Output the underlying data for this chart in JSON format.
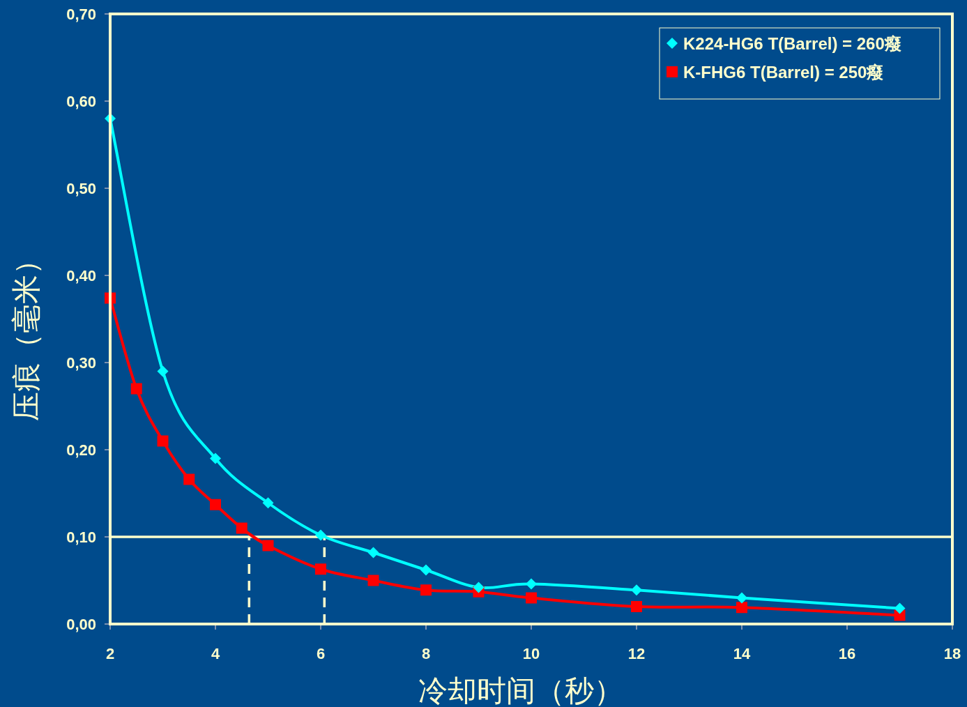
{
  "chart_data": {
    "type": "line",
    "xlabel": "冷却时间（秒）",
    "ylabel": "压痕（毫米）",
    "xlim": [
      2,
      18
    ],
    "xticks": [
      2,
      4,
      6,
      8,
      10,
      12,
      14,
      16,
      18
    ],
    "ylim": [
      0,
      0.7
    ],
    "yticks": [
      {
        "value": 0,
        "label": "0,00"
      },
      {
        "value": 0.1,
        "label": "0,10"
      },
      {
        "value": 0.2,
        "label": "0,20"
      },
      {
        "value": 0.3,
        "label": "0,30"
      },
      {
        "value": 0.4,
        "label": "0,40"
      },
      {
        "value": 0.5,
        "label": "0,50"
      },
      {
        "value": 0.6,
        "label": "0,60"
      },
      {
        "value": 0.7,
        "label": "0,70"
      }
    ],
    "grid": false,
    "legend": "top right",
    "series": [
      {
        "name": "K224-HG6 T(Barrel) = 260癈",
        "color": "#00ffff",
        "marker": "diamond",
        "x": [
          2,
          3,
          4,
          5,
          6,
          7,
          8,
          9,
          10,
          12,
          14,
          17
        ],
        "values": [
          0.58,
          0.29,
          0.19,
          0.139,
          0.102,
          0.082,
          0.062,
          0.042,
          0.046,
          0.039,
          0.03,
          0.018
        ]
      },
      {
        "name": "K-FHG6 T(Barrel) = 250癈",
        "color": "#ff0000",
        "marker": "square",
        "x": [
          2,
          2.5,
          3,
          3.5,
          4,
          4.5,
          5,
          6,
          7,
          8,
          9,
          10,
          12,
          14,
          17
        ],
        "values": [
          0.374,
          0.27,
          0.21,
          0.166,
          0.137,
          0.11,
          0.09,
          0.063,
          0.05,
          0.039,
          0.037,
          0.03,
          0.02,
          0.019,
          0.01
        ]
      }
    ],
    "ref_lines": [
      {
        "axis": "y",
        "value": 0.1,
        "color": "#ffffcc",
        "line_style": "solid"
      },
      {
        "axis": "x",
        "value": 4.64,
        "color": "#ffffcc",
        "line_style": "dashed"
      },
      {
        "axis": "x",
        "value": 6.07,
        "color": "#ffffcc",
        "line_style": "dashed"
      }
    ]
  }
}
